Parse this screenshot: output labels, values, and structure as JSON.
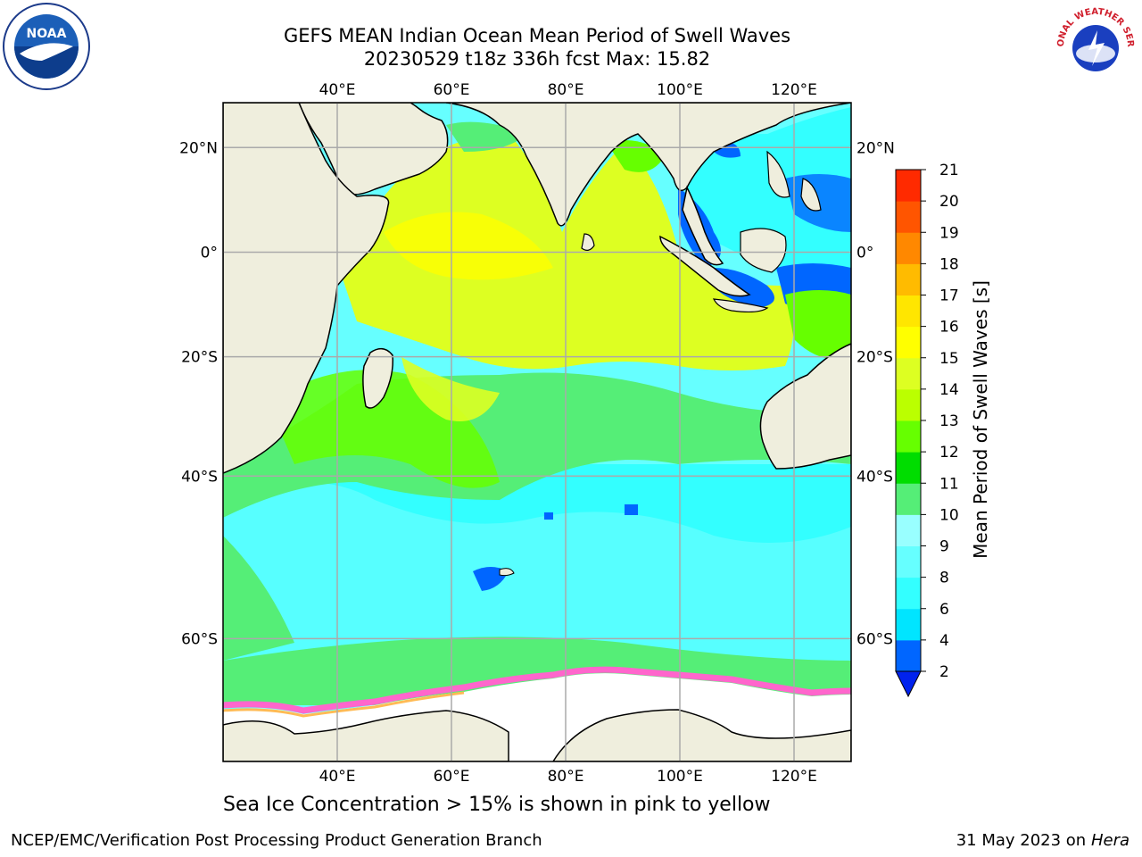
{
  "title": {
    "line1": "GEFS MEAN Indian Ocean Mean Period of Swell Waves",
    "line2": "20230529 t18z 336h fcst   Max: 15.82"
  },
  "logos": {
    "left": "NOAA",
    "right": "NATIONAL WEATHER SERVICE"
  },
  "map": {
    "lon_ticks": [
      "40°E",
      "60°E",
      "80°E",
      "100°E",
      "120°E"
    ],
    "lat_ticks": [
      "20°N",
      "0°",
      "20°S",
      "40°S",
      "60°S"
    ],
    "extent": {
      "lon": [
        20,
        130
      ],
      "lat": [
        -70,
        28
      ]
    },
    "gridlines": true,
    "land_color": "#efeedd",
    "sea_ice_color": "#ff66cc"
  },
  "colorbar": {
    "label": "Mean Period of Swell Waves [s]",
    "ticks": [
      "2",
      "4",
      "6",
      "8",
      "9",
      "10",
      "11",
      "12",
      "13",
      "14",
      "15",
      "16",
      "17",
      "18",
      "19",
      "20",
      "21"
    ],
    "colors": [
      "#0066ff",
      "#00e5ff",
      "#33ffff",
      "#66ffff",
      "#99ffff",
      "#55ee77",
      "#00dd00",
      "#66ff00",
      "#bbff00",
      "#ddff22",
      "#ffff00",
      "#ffe600",
      "#ffbb00",
      "#ff8800",
      "#ff5500",
      "#ff2a00"
    ],
    "extend_color": "#0022ee"
  },
  "footer": {
    "note": "Sea Ice Concentration > 15% is shown in pink to yellow",
    "credit": "NCEP/EMC/Verification Post Processing Product Generation Branch",
    "date": "31 May 2023 on",
    "machine": "Hera"
  }
}
